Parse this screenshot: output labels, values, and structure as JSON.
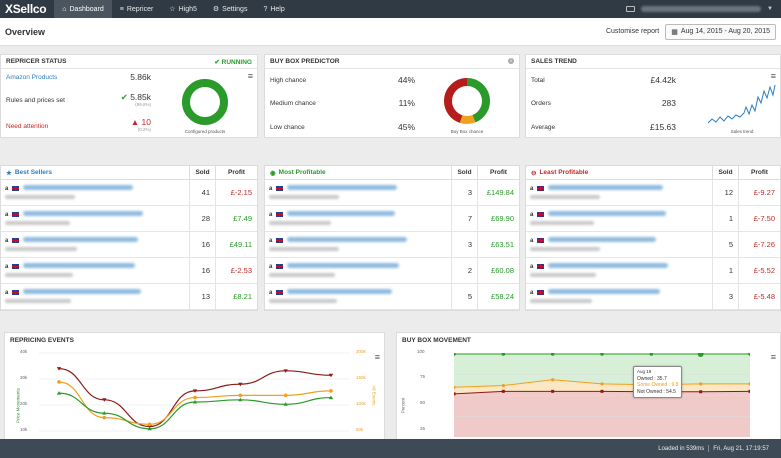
{
  "app": {
    "logo": "XSellco"
  },
  "nav": {
    "items": [
      {
        "label": "Dashboard",
        "icon": "home-icon"
      },
      {
        "label": "Repricer",
        "icon": "sliders-icon"
      },
      {
        "label": "High5",
        "icon": "star-icon"
      },
      {
        "label": "Settings",
        "icon": "gear-icon"
      },
      {
        "label": "Help",
        "icon": "help-icon"
      }
    ]
  },
  "header": {
    "title": "Overview",
    "customise_label": "Customise report",
    "date_range": "Aug 14, 2015 - Aug 20, 2015"
  },
  "repricer_status": {
    "title": "REPRICER STATUS",
    "status": "RUNNING",
    "rows": [
      {
        "label": "Amazon Products",
        "value": "5.86k",
        "sub": ""
      },
      {
        "label": "Rules and prices set",
        "value": "5.85k",
        "sub": "(99.8%)"
      },
      {
        "label": "Need attention",
        "value": "10",
        "sub": "(0.2%)"
      }
    ],
    "caption": "Configured products",
    "colors": {
      "green": "#2a9a2a",
      "red": "#c62828"
    }
  },
  "buy_box_predictor": {
    "title": "BUY BOX PREDICTOR",
    "rows": [
      {
        "label": "High chance",
        "value": "44%"
      },
      {
        "label": "Medium chance",
        "value": "11%"
      },
      {
        "label": "Low chance",
        "value": "45%"
      }
    ],
    "caption": "Buy Box chance"
  },
  "sales_trend": {
    "title": "SALES TREND",
    "rows": [
      {
        "label": "Total",
        "value": "£4.42k"
      },
      {
        "label": "Orders",
        "value": "283"
      },
      {
        "label": "Average",
        "value": "£15.63"
      }
    ],
    "caption": "Sales trend"
  },
  "tables": {
    "headers": {
      "sold": "Sold",
      "profit": "Profit"
    },
    "best_sellers": {
      "title": "Best Sellers",
      "icon": "star-icon",
      "rows": [
        {
          "sold": "41",
          "profit": "£-2.15"
        },
        {
          "sold": "28",
          "profit": "£7.49"
        },
        {
          "sold": "16",
          "profit": "£49.11"
        },
        {
          "sold": "16",
          "profit": "£-2.53"
        },
        {
          "sold": "13",
          "profit": "£8.21"
        }
      ]
    },
    "most_profitable": {
      "title": "Most Profitable",
      "icon": "coin-icon",
      "rows": [
        {
          "sold": "3",
          "profit": "£149.84"
        },
        {
          "sold": "7",
          "profit": "£69.90"
        },
        {
          "sold": "3",
          "profit": "£63.51"
        },
        {
          "sold": "2",
          "profit": "£60.08"
        },
        {
          "sold": "5",
          "profit": "£58.24"
        }
      ]
    },
    "least_profitable": {
      "title": "Least Profitable",
      "icon": "minus-circle-icon",
      "rows": [
        {
          "sold": "12",
          "profit": "£-9.27"
        },
        {
          "sold": "1",
          "profit": "£-7.50"
        },
        {
          "sold": "5",
          "profit": "£-7.26"
        },
        {
          "sold": "1",
          "profit": "£-5.52"
        },
        {
          "sold": "3",
          "profit": "£-5.48"
        }
      ]
    },
    "marketplace_badge": "a"
  },
  "repricing_events": {
    "title": "REPRICING EVENTS",
    "ylabel_left": "Price Movements",
    "ylabel_right": "All Events",
    "left_ticks": [
      "40k",
      "30k",
      "20k",
      "10k"
    ],
    "right_ticks": [
      "200k",
      "150k",
      "100k",
      "50k"
    ]
  },
  "buy_box_movement": {
    "title": "BUY BOX MOVEMENT",
    "ylabel": "Percent",
    "ticks": [
      "100",
      "75",
      "50",
      "25"
    ],
    "tooltip": {
      "date": "Aug 19",
      "owned": "Owned : 35.7",
      "some_owned": "Some Owned : 9.8",
      "not_owned": "Not Owned : 54.5"
    }
  },
  "chart_data": [
    {
      "type": "line",
      "x": [
        1,
        2,
        3,
        4,
        5,
        6,
        7
      ],
      "series": [
        {
          "name": "",
          "color": "#8b1a1a",
          "values": [
            33,
            19,
            7,
            23,
            26,
            32,
            30
          ]
        },
        {
          "name": "",
          "color": "#f0a020",
          "values": [
            27,
            11,
            8,
            20,
            21,
            21,
            23
          ]
        },
        {
          "name": "",
          "color": "#2a9a2a",
          "values": [
            22,
            13,
            6,
            18,
            19,
            17,
            20
          ]
        }
      ],
      "ylim": [
        5,
        40
      ]
    },
    {
      "type": "area",
      "x": [
        1,
        2,
        3,
        4,
        5,
        6,
        7
      ],
      "series": [
        {
          "name": "Owned",
          "color": "#2a9a2a",
          "values": [
            100,
            100,
            100,
            100,
            100,
            100,
            100
          ]
        },
        {
          "name": "Some Owned",
          "color": "#f0a020",
          "values": [
            60,
            62,
            69,
            64,
            63,
            64,
            64
          ]
        },
        {
          "name": "Not Owned",
          "color": "#8b1a1a",
          "values": [
            52,
            55,
            55,
            55,
            54.5,
            54.5,
            55
          ]
        }
      ],
      "ylim": [
        0,
        100
      ]
    }
  ],
  "footer": {
    "loaded": "Loaded in 539ms",
    "datetime": "Fri, Aug 21, 17:19:57"
  }
}
